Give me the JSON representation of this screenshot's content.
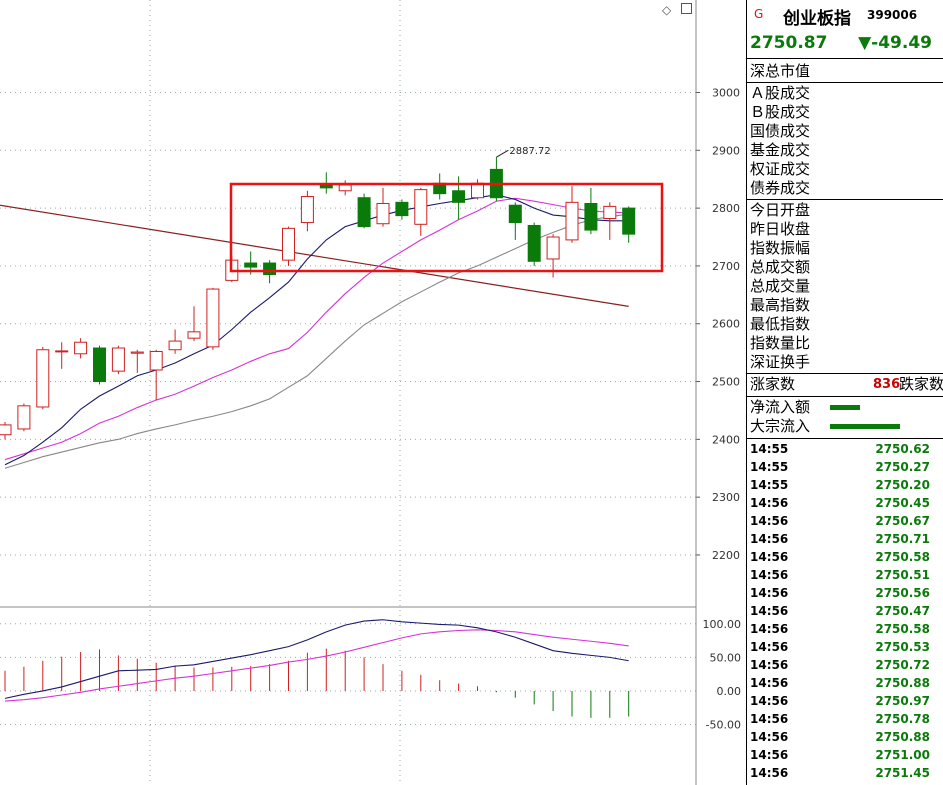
{
  "window": {
    "indicator_label": "G",
    "index_name": "创业板指",
    "index_code": "399006"
  },
  "quote": {
    "price": "2750.87",
    "change": "▼-49.49"
  },
  "info_labels": {
    "total_mkt": "深总市值",
    "a_turnover": "Ａ股成交",
    "b_turnover": "Ｂ股成交",
    "gov_bond": "国债成交",
    "fund": "基金成交",
    "warrant": "权证成交",
    "bond": "债券成交",
    "open": "今日开盘",
    "prev_close": "昨日收盘",
    "amplitude": "指数振幅",
    "total_amount": "总成交额",
    "total_volume": "总成交量",
    "high": "最高指数",
    "low": "最低指数",
    "vol_ratio": "指数量比",
    "turnover_rate": "深证换手"
  },
  "breadth": {
    "up_label": "涨家数",
    "down_count": "836",
    "down_label": "跌家数"
  },
  "flows": {
    "net_inflow_label": "净流入额",
    "block_inflow_label": "大宗流入",
    "net_inflow_bar": 0.16,
    "block_inflow_bar": 0.37
  },
  "ticks": [
    {
      "time": "14:55",
      "value": "2750.62"
    },
    {
      "time": "14:55",
      "value": "2750.27"
    },
    {
      "time": "14:55",
      "value": "2750.20"
    },
    {
      "time": "14:56",
      "value": "2750.45"
    },
    {
      "time": "14:56",
      "value": "2750.67"
    },
    {
      "time": "14:56",
      "value": "2750.71"
    },
    {
      "time": "14:56",
      "value": "2750.58"
    },
    {
      "time": "14:56",
      "value": "2750.51"
    },
    {
      "time": "14:56",
      "value": "2750.56"
    },
    {
      "time": "14:56",
      "value": "2750.47"
    },
    {
      "time": "14:56",
      "value": "2750.58"
    },
    {
      "time": "14:56",
      "value": "2750.53"
    },
    {
      "time": "14:56",
      "value": "2750.72"
    },
    {
      "time": "14:56",
      "value": "2750.88"
    },
    {
      "time": "14:56",
      "value": "2750.97"
    },
    {
      "time": "14:56",
      "value": "2750.78"
    },
    {
      "time": "14:56",
      "value": "2750.88"
    },
    {
      "time": "14:56",
      "value": "2751.00"
    },
    {
      "time": "14:56",
      "value": "2751.45"
    }
  ],
  "colors": {
    "up": "#d02020",
    "down": "#0a7a0a",
    "ma_fast": "#1a1a6e",
    "ma_mid": "#d633d6",
    "ma_slow": "#888888",
    "trend": "#8b2020",
    "highlight_box": "#ee1111"
  },
  "chart_data": {
    "type": "candlestick",
    "price_axis": {
      "ticks": [
        2200,
        2300,
        2400,
        2500,
        2600,
        2700,
        2800,
        2900,
        3000
      ],
      "range": [
        2110,
        3160
      ]
    },
    "max_label": "2887.72",
    "candles": [
      {
        "o": 2408,
        "c": 2425,
        "h": 2430,
        "l": 2400
      },
      {
        "o": 2418,
        "c": 2458,
        "h": 2462,
        "l": 2414
      },
      {
        "o": 2456,
        "c": 2555,
        "h": 2560,
        "l": 2452
      },
      {
        "o": 2552,
        "c": 2553,
        "h": 2568,
        "l": 2522
      },
      {
        "o": 2548,
        "c": 2568,
        "h": 2575,
        "l": 2540
      },
      {
        "o": 2558,
        "c": 2500,
        "h": 2562,
        "l": 2495
      },
      {
        "o": 2518,
        "c": 2558,
        "h": 2562,
        "l": 2513
      },
      {
        "o": 2549,
        "c": 2551,
        "h": 2555,
        "l": 2515
      },
      {
        "o": 2520,
        "c": 2552,
        "h": 2555,
        "l": 2468
      },
      {
        "o": 2555,
        "c": 2570,
        "h": 2590,
        "l": 2548
      },
      {
        "o": 2575,
        "c": 2586,
        "h": 2630,
        "l": 2570
      },
      {
        "o": 2560,
        "c": 2660,
        "h": 2662,
        "l": 2555
      },
      {
        "o": 2675,
        "c": 2710,
        "h": 2718,
        "l": 2672
      },
      {
        "o": 2705,
        "c": 2698,
        "h": 2725,
        "l": 2685
      },
      {
        "o": 2705,
        "c": 2685,
        "h": 2710,
        "l": 2670
      },
      {
        "o": 2710,
        "c": 2765,
        "h": 2768,
        "l": 2700
      },
      {
        "o": 2775,
        "c": 2820,
        "h": 2830,
        "l": 2760
      },
      {
        "o": 2840,
        "c": 2835,
        "h": 2862,
        "l": 2825
      },
      {
        "o": 2830,
        "c": 2840,
        "h": 2848,
        "l": 2822
      },
      {
        "o": 2818,
        "c": 2768,
        "h": 2825,
        "l": 2765
      },
      {
        "o": 2773,
        "c": 2808,
        "h": 2835,
        "l": 2768
      },
      {
        "o": 2810,
        "c": 2787,
        "h": 2815,
        "l": 2780
      },
      {
        "o": 2772,
        "c": 2832,
        "h": 2835,
        "l": 2752
      },
      {
        "o": 2843,
        "c": 2825,
        "h": 2860,
        "l": 2815
      },
      {
        "o": 2830,
        "c": 2810,
        "h": 2855,
        "l": 2780
      },
      {
        "o": 2818,
        "c": 2843,
        "h": 2850,
        "l": 2815
      },
      {
        "o": 2867,
        "c": 2818,
        "h": 2888,
        "l": 2812
      },
      {
        "o": 2805,
        "c": 2775,
        "h": 2810,
        "l": 2745
      },
      {
        "o": 2770,
        "c": 2708,
        "h": 2775,
        "l": 2700
      },
      {
        "o": 2712,
        "c": 2750,
        "h": 2755,
        "l": 2680
      },
      {
        "o": 2745,
        "c": 2810,
        "h": 2838,
        "l": 2740
      },
      {
        "o": 2808,
        "c": 2762,
        "h": 2835,
        "l": 2755
      },
      {
        "o": 2782,
        "c": 2803,
        "h": 2810,
        "l": 2745
      },
      {
        "o": 2800,
        "c": 2755,
        "h": 2803,
        "l": 2740
      }
    ],
    "ma_fast": [
      2356,
      2372,
      2395,
      2420,
      2452,
      2475,
      2492,
      2510,
      2520,
      2532,
      2548,
      2563,
      2590,
      2620,
      2645,
      2672,
      2712,
      2745,
      2768,
      2778,
      2788,
      2796,
      2802,
      2808,
      2813,
      2818,
      2823,
      2815,
      2800,
      2788,
      2785,
      2780,
      2778,
      2778
    ],
    "ma_mid": [
      2365,
      2375,
      2385,
      2395,
      2410,
      2428,
      2440,
      2455,
      2468,
      2478,
      2492,
      2507,
      2520,
      2535,
      2548,
      2557,
      2585,
      2620,
      2652,
      2680,
      2705,
      2725,
      2745,
      2762,
      2780,
      2795,
      2812,
      2817,
      2812,
      2806,
      2800,
      2795,
      2793,
      2792
    ],
    "ma_slow": [
      2350,
      2360,
      2370,
      2378,
      2386,
      2394,
      2400,
      2410,
      2418,
      2425,
      2433,
      2440,
      2448,
      2458,
      2470,
      2490,
      2510,
      2540,
      2570,
      2598,
      2618,
      2638,
      2655,
      2672,
      2688,
      2700,
      2715,
      2730,
      2745,
      2758,
      2770,
      2780,
      2785,
      2790
    ],
    "trend_line": {
      "start": 2805,
      "end": 2630
    },
    "macd_axis": {
      "ticks": [
        100,
        50,
        0,
        -50
      ],
      "range": [
        -140,
        125
      ]
    },
    "dif": [
      -11,
      -5,
      0,
      6,
      14,
      22,
      30,
      31,
      32,
      37,
      39,
      44,
      49,
      54,
      60,
      66,
      76,
      88,
      98,
      104,
      106,
      103,
      101,
      99,
      98,
      94,
      88,
      80,
      70,
      60,
      56,
      53,
      50,
      45
    ],
    "dea": [
      -15,
      -13,
      -10,
      -6,
      -2,
      3,
      7,
      11,
      15,
      19,
      22,
      26,
      30,
      34,
      38,
      43,
      47,
      52,
      58,
      65,
      72,
      79,
      85,
      88,
      90,
      91,
      90,
      88,
      84,
      80,
      77,
      74,
      71,
      67
    ],
    "macd": [
      30,
      36,
      45,
      51,
      58,
      62,
      53,
      48,
      42,
      38,
      35,
      35,
      36,
      37,
      40,
      45,
      57,
      63,
      60,
      50,
      40,
      30,
      24,
      16,
      11,
      7,
      -2,
      -10,
      -20,
      -30,
      -38,
      -40,
      -40,
      -38
    ]
  }
}
